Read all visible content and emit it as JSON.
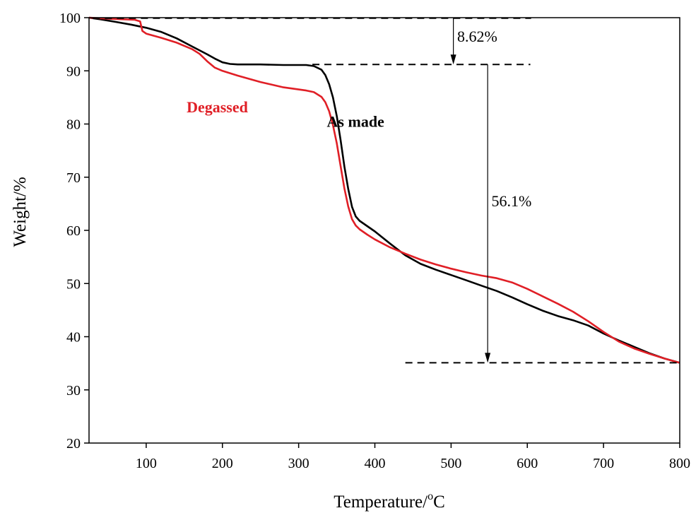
{
  "chart_data": {
    "type": "line",
    "title": "",
    "xlabel": "Temperature/",
    "xlabel_unit_sup": "o",
    "xlabel_unit": "C",
    "ylabel": "Weight/%",
    "xlim": [
      25,
      800
    ],
    "ylim": [
      20,
      100
    ],
    "x_ticks": [
      "100",
      "200",
      "300",
      "400",
      "500",
      "600",
      "700",
      "800"
    ],
    "y_ticks": [
      "20",
      "30",
      "40",
      "50",
      "60",
      "70",
      "80",
      "90",
      "100"
    ],
    "grid": false,
    "legend": "none",
    "series": [
      {
        "name": "As made",
        "color": "#000000",
        "x": [
          25,
          40,
          60,
          80,
          100,
          120,
          140,
          160,
          180,
          190,
          200,
          210,
          220,
          250,
          280,
          300,
          310,
          320,
          330,
          335,
          340,
          345,
          350,
          355,
          360,
          365,
          370,
          375,
          380,
          390,
          400,
          420,
          440,
          460,
          480,
          500,
          520,
          540,
          560,
          580,
          600,
          620,
          640,
          660,
          680,
          700,
          720,
          740,
          760,
          780,
          800
        ],
        "y": [
          100,
          99.7,
          99.2,
          98.7,
          98.1,
          97.3,
          96.1,
          94.6,
          93.1,
          92.3,
          91.6,
          91.3,
          91.2,
          91.2,
          91.1,
          91.1,
          91.1,
          90.9,
          90.2,
          89.2,
          87.5,
          85,
          81.5,
          77,
          72,
          67.8,
          64.4,
          62.6,
          61.8,
          60.8,
          59.8,
          57.5,
          55.3,
          53.7,
          52.6,
          51.6,
          50.6,
          49.6,
          48.6,
          47.4,
          46.1,
          44.9,
          43.9,
          43.1,
          42.1,
          40.6,
          39.3,
          38.1,
          36.9,
          35.9,
          35.1
        ]
      },
      {
        "name": "Degassed",
        "color": "#e01f26",
        "x": [
          25,
          50,
          70,
          85,
          92,
          95,
          100,
          120,
          140,
          160,
          170,
          180,
          190,
          200,
          220,
          250,
          280,
          300,
          310,
          320,
          330,
          335,
          340,
          345,
          350,
          355,
          360,
          365,
          370,
          375,
          380,
          390,
          400,
          420,
          440,
          460,
          480,
          500,
          520,
          540,
          560,
          580,
          600,
          620,
          640,
          660,
          680,
          700,
          720,
          740,
          760,
          780,
          800
        ],
        "y": [
          100,
          99.8,
          99.7,
          99.6,
          99.3,
          97.5,
          97,
          96.2,
          95.3,
          94.1,
          93.2,
          91.8,
          90.6,
          90,
          89.1,
          87.9,
          86.9,
          86.5,
          86.3,
          86,
          85.1,
          84.1,
          82.4,
          79.8,
          76.4,
          72.1,
          67.9,
          64.5,
          62.1,
          60.9,
          60.2,
          59.2,
          58.3,
          56.8,
          55.6,
          54.5,
          53.6,
          52.8,
          52.1,
          51.5,
          51,
          50.2,
          49,
          47.6,
          46.2,
          44.7,
          42.9,
          40.9,
          39.1,
          37.8,
          36.8,
          35.9,
          35.1
        ]
      }
    ],
    "reference_lines": [
      {
        "y": 99.9,
        "x_start": 30,
        "x_end": 605
      },
      {
        "y": 91.2,
        "x_start": 318,
        "x_end": 604
      },
      {
        "y": 35.1,
        "x_start": 440,
        "x_end": 800
      }
    ],
    "arrows": [
      {
        "x": 503,
        "y_from": 99.9,
        "y_to": 91.2
      },
      {
        "x": 548,
        "y_from": 91.2,
        "y_to": 35.1
      }
    ],
    "annotations": [
      {
        "text": "8.62%",
        "x": 508,
        "y": 95.5
      },
      {
        "text": "56.1%",
        "x": 553,
        "y": 64.5
      },
      {
        "text": "Degassed",
        "x": 153,
        "y": 82.2,
        "color": "#e01f26"
      },
      {
        "text": "As made",
        "x": 337,
        "y": 79.5,
        "color": "#000000"
      }
    ]
  }
}
